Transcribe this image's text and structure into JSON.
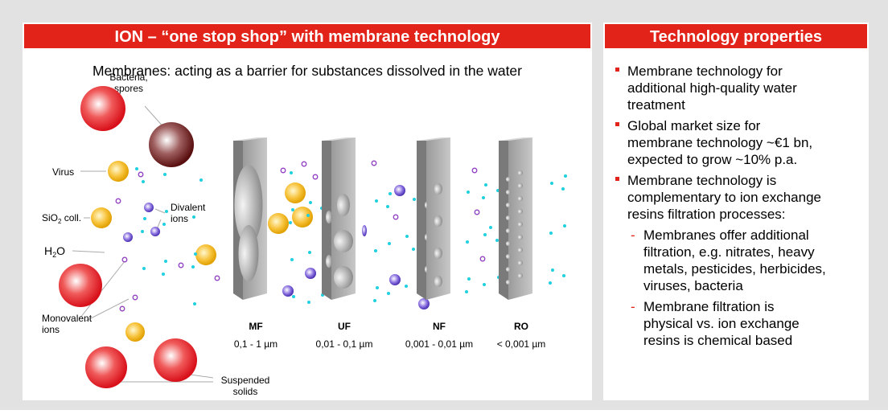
{
  "left_panel": {
    "header": "ION – “one stop shop” with membrane technology",
    "subtitle": "Membranes: acting as a barrier for substances dissolved in the water",
    "labels": {
      "bacteria": [
        "Bacteria,",
        "spores"
      ],
      "virus": "Virus",
      "sio2": [
        "SiO",
        "2",
        " coll."
      ],
      "divalent": [
        "Divalent",
        "ions"
      ],
      "h2o": [
        "H",
        "2",
        "O"
      ],
      "monovalent": [
        "Monovalent",
        "ions"
      ],
      "suspended": [
        "Suspended",
        "solids"
      ]
    },
    "membranes": [
      {
        "name": "MF",
        "size": "0,1 - 1 µm"
      },
      {
        "name": "UF",
        "size": "0,01 - 0,1 µm"
      },
      {
        "name": "NF",
        "size": "0,001 - 0,01 µm"
      },
      {
        "name": "RO",
        "size": "< 0,001 µm"
      }
    ]
  },
  "right_panel": {
    "header": "Technology properties",
    "bullets": [
      {
        "lines": [
          "Membrane technology for",
          "additional high-quality water",
          "treatment"
        ]
      },
      {
        "lines": [
          "Global market size for",
          "membrane technology ~€1 bn,",
          "expected to grow ~10% p.a."
        ]
      },
      {
        "lines": [
          "Membrane technology is",
          "complementary to ion exchange",
          "resins filtration processes:"
        ],
        "sub": [
          {
            "lines": [
              "Membranes offer additional",
              "filtration, e.g. nitrates, heavy",
              "metals, pesticides, herbicides,",
              "viruses, bacteria"
            ]
          },
          {
            "lines": [
              "Membrane filtration is",
              "physical vs. ion exchange",
              "resins is chemical based"
            ]
          }
        ]
      }
    ]
  }
}
